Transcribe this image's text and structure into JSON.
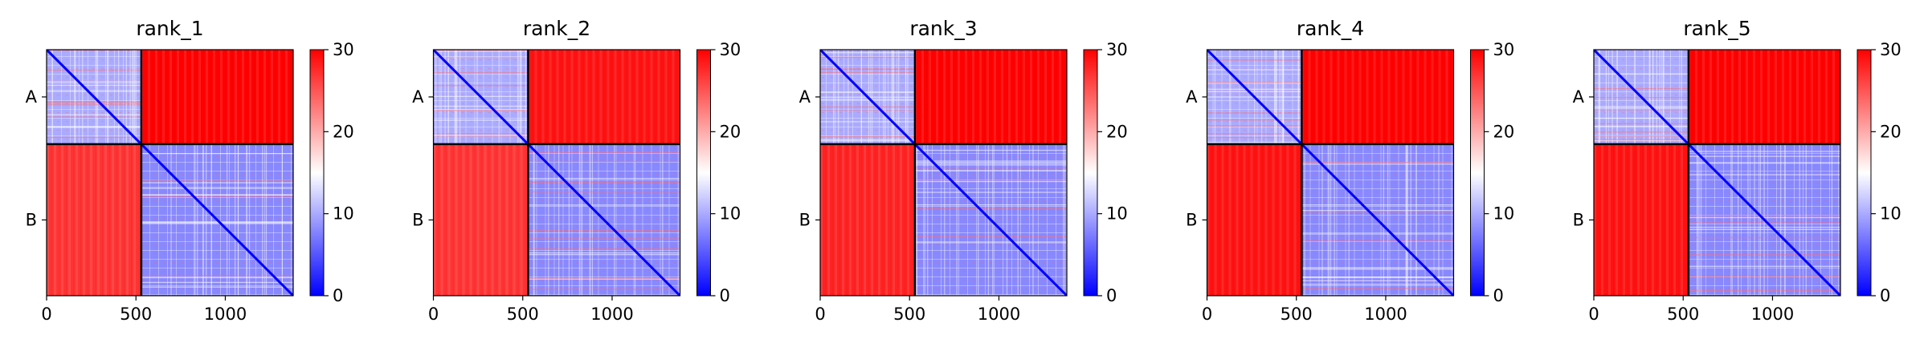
{
  "chart_data": [
    {
      "type": "heatmap",
      "title": "rank_1",
      "chain_labels": [
        "A",
        "B"
      ],
      "chain_boundary": 530,
      "x_ticks": [
        0,
        500,
        1000
      ],
      "xlim": [
        0,
        1380
      ],
      "ylim": [
        1380,
        0
      ],
      "colorbar": {
        "min": 0,
        "max": 30,
        "ticks": [
          0,
          10,
          20,
          30
        ],
        "colors": [
          "#0000ff",
          "#ffffff",
          "#ff0000"
        ]
      },
      "blocks": [
        {
          "rows": "A",
          "cols": "A",
          "mean_value": 10
        },
        {
          "rows": "A",
          "cols": "B",
          "mean_value": 30
        },
        {
          "rows": "B",
          "cols": "A",
          "mean_value": 27
        },
        {
          "rows": "B",
          "cols": "B",
          "mean_value": 8
        }
      ]
    },
    {
      "type": "heatmap",
      "title": "rank_2",
      "chain_labels": [
        "A",
        "B"
      ],
      "chain_boundary": 530,
      "x_ticks": [
        0,
        500,
        1000
      ],
      "xlim": [
        0,
        1380
      ],
      "ylim": [
        1380,
        0
      ],
      "colorbar": {
        "min": 0,
        "max": 30,
        "ticks": [
          0,
          10,
          20,
          30
        ],
        "colors": [
          "#0000ff",
          "#ffffff",
          "#ff0000"
        ]
      },
      "blocks": [
        {
          "rows": "A",
          "cols": "A",
          "mean_value": 10
        },
        {
          "rows": "A",
          "cols": "B",
          "mean_value": 29
        },
        {
          "rows": "B",
          "cols": "A",
          "mean_value": 27
        },
        {
          "rows": "B",
          "cols": "B",
          "mean_value": 8
        }
      ]
    },
    {
      "type": "heatmap",
      "title": "rank_3",
      "chain_labels": [
        "A",
        "B"
      ],
      "chain_boundary": 530,
      "x_ticks": [
        0,
        500,
        1000
      ],
      "xlim": [
        0,
        1380
      ],
      "ylim": [
        1380,
        0
      ],
      "colorbar": {
        "min": 0,
        "max": 30,
        "ticks": [
          0,
          10,
          20,
          30
        ],
        "colors": [
          "#0000ff",
          "#ffffff",
          "#ff0000"
        ]
      },
      "blocks": [
        {
          "rows": "A",
          "cols": "A",
          "mean_value": 10
        },
        {
          "rows": "A",
          "cols": "B",
          "mean_value": 30
        },
        {
          "rows": "B",
          "cols": "A",
          "mean_value": 28
        },
        {
          "rows": "B",
          "cols": "B",
          "mean_value": 8
        }
      ]
    },
    {
      "type": "heatmap",
      "title": "rank_4",
      "chain_labels": [
        "A",
        "B"
      ],
      "chain_boundary": 530,
      "x_ticks": [
        0,
        500,
        1000
      ],
      "xlim": [
        0,
        1380
      ],
      "ylim": [
        1380,
        0
      ],
      "colorbar": {
        "min": 0,
        "max": 30,
        "ticks": [
          0,
          10,
          20,
          30
        ],
        "colors": [
          "#0000ff",
          "#ffffff",
          "#ff0000"
        ]
      },
      "blocks": [
        {
          "rows": "A",
          "cols": "A",
          "mean_value": 10
        },
        {
          "rows": "A",
          "cols": "B",
          "mean_value": 30
        },
        {
          "rows": "B",
          "cols": "A",
          "mean_value": 29
        },
        {
          "rows": "B",
          "cols": "B",
          "mean_value": 8
        }
      ]
    },
    {
      "type": "heatmap",
      "title": "rank_5",
      "chain_labels": [
        "A",
        "B"
      ],
      "chain_boundary": 530,
      "x_ticks": [
        0,
        500,
        1000
      ],
      "xlim": [
        0,
        1380
      ],
      "ylim": [
        1380,
        0
      ],
      "colorbar": {
        "min": 0,
        "max": 30,
        "ticks": [
          0,
          10,
          20,
          30
        ],
        "colors": [
          "#0000ff",
          "#ffffff",
          "#ff0000"
        ]
      },
      "blocks": [
        {
          "rows": "A",
          "cols": "A",
          "mean_value": 10
        },
        {
          "rows": "A",
          "cols": "B",
          "mean_value": 30
        },
        {
          "rows": "B",
          "cols": "A",
          "mean_value": 29
        },
        {
          "rows": "B",
          "cols": "B",
          "mean_value": 8
        }
      ]
    }
  ]
}
